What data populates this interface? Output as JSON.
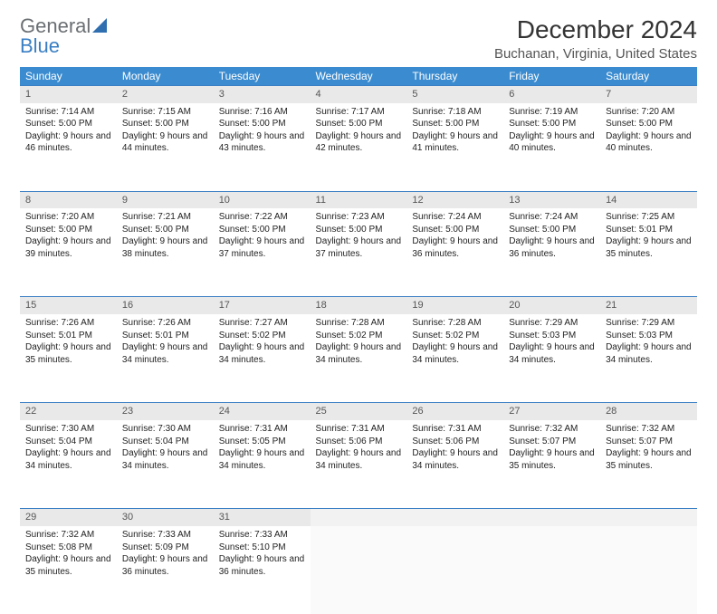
{
  "brand": {
    "part1": "General",
    "part2": "Blue"
  },
  "title": "December 2024",
  "location": "Buchanan, Virginia, United States",
  "colors": {
    "header_bg": "#3a8bcf",
    "accent": "#3a7fc4",
    "daynum_bg": "#e9e9e9",
    "text": "#222222"
  },
  "weekdays": [
    "Sunday",
    "Monday",
    "Tuesday",
    "Wednesday",
    "Thursday",
    "Friday",
    "Saturday"
  ],
  "weeks": [
    [
      {
        "n": "1",
        "sr": "7:14 AM",
        "ss": "5:00 PM",
        "dl": "9 hours and 46 minutes."
      },
      {
        "n": "2",
        "sr": "7:15 AM",
        "ss": "5:00 PM",
        "dl": "9 hours and 44 minutes."
      },
      {
        "n": "3",
        "sr": "7:16 AM",
        "ss": "5:00 PM",
        "dl": "9 hours and 43 minutes."
      },
      {
        "n": "4",
        "sr": "7:17 AM",
        "ss": "5:00 PM",
        "dl": "9 hours and 42 minutes."
      },
      {
        "n": "5",
        "sr": "7:18 AM",
        "ss": "5:00 PM",
        "dl": "9 hours and 41 minutes."
      },
      {
        "n": "6",
        "sr": "7:19 AM",
        "ss": "5:00 PM",
        "dl": "9 hours and 40 minutes."
      },
      {
        "n": "7",
        "sr": "7:20 AM",
        "ss": "5:00 PM",
        "dl": "9 hours and 40 minutes."
      }
    ],
    [
      {
        "n": "8",
        "sr": "7:20 AM",
        "ss": "5:00 PM",
        "dl": "9 hours and 39 minutes."
      },
      {
        "n": "9",
        "sr": "7:21 AM",
        "ss": "5:00 PM",
        "dl": "9 hours and 38 minutes."
      },
      {
        "n": "10",
        "sr": "7:22 AM",
        "ss": "5:00 PM",
        "dl": "9 hours and 37 minutes."
      },
      {
        "n": "11",
        "sr": "7:23 AM",
        "ss": "5:00 PM",
        "dl": "9 hours and 37 minutes."
      },
      {
        "n": "12",
        "sr": "7:24 AM",
        "ss": "5:00 PM",
        "dl": "9 hours and 36 minutes."
      },
      {
        "n": "13",
        "sr": "7:24 AM",
        "ss": "5:00 PM",
        "dl": "9 hours and 36 minutes."
      },
      {
        "n": "14",
        "sr": "7:25 AM",
        "ss": "5:01 PM",
        "dl": "9 hours and 35 minutes."
      }
    ],
    [
      {
        "n": "15",
        "sr": "7:26 AM",
        "ss": "5:01 PM",
        "dl": "9 hours and 35 minutes."
      },
      {
        "n": "16",
        "sr": "7:26 AM",
        "ss": "5:01 PM",
        "dl": "9 hours and 34 minutes."
      },
      {
        "n": "17",
        "sr": "7:27 AM",
        "ss": "5:02 PM",
        "dl": "9 hours and 34 minutes."
      },
      {
        "n": "18",
        "sr": "7:28 AM",
        "ss": "5:02 PM",
        "dl": "9 hours and 34 minutes."
      },
      {
        "n": "19",
        "sr": "7:28 AM",
        "ss": "5:02 PM",
        "dl": "9 hours and 34 minutes."
      },
      {
        "n": "20",
        "sr": "7:29 AM",
        "ss": "5:03 PM",
        "dl": "9 hours and 34 minutes."
      },
      {
        "n": "21",
        "sr": "7:29 AM",
        "ss": "5:03 PM",
        "dl": "9 hours and 34 minutes."
      }
    ],
    [
      {
        "n": "22",
        "sr": "7:30 AM",
        "ss": "5:04 PM",
        "dl": "9 hours and 34 minutes."
      },
      {
        "n": "23",
        "sr": "7:30 AM",
        "ss": "5:04 PM",
        "dl": "9 hours and 34 minutes."
      },
      {
        "n": "24",
        "sr": "7:31 AM",
        "ss": "5:05 PM",
        "dl": "9 hours and 34 minutes."
      },
      {
        "n": "25",
        "sr": "7:31 AM",
        "ss": "5:06 PM",
        "dl": "9 hours and 34 minutes."
      },
      {
        "n": "26",
        "sr": "7:31 AM",
        "ss": "5:06 PM",
        "dl": "9 hours and 34 minutes."
      },
      {
        "n": "27",
        "sr": "7:32 AM",
        "ss": "5:07 PM",
        "dl": "9 hours and 35 minutes."
      },
      {
        "n": "28",
        "sr": "7:32 AM",
        "ss": "5:07 PM",
        "dl": "9 hours and 35 minutes."
      }
    ],
    [
      {
        "n": "29",
        "sr": "7:32 AM",
        "ss": "5:08 PM",
        "dl": "9 hours and 35 minutes."
      },
      {
        "n": "30",
        "sr": "7:33 AM",
        "ss": "5:09 PM",
        "dl": "9 hours and 36 minutes."
      },
      {
        "n": "31",
        "sr": "7:33 AM",
        "ss": "5:10 PM",
        "dl": "9 hours and 36 minutes."
      },
      null,
      null,
      null,
      null
    ]
  ],
  "labels": {
    "sunrise": "Sunrise: ",
    "sunset": "Sunset: ",
    "daylight": "Daylight: "
  }
}
